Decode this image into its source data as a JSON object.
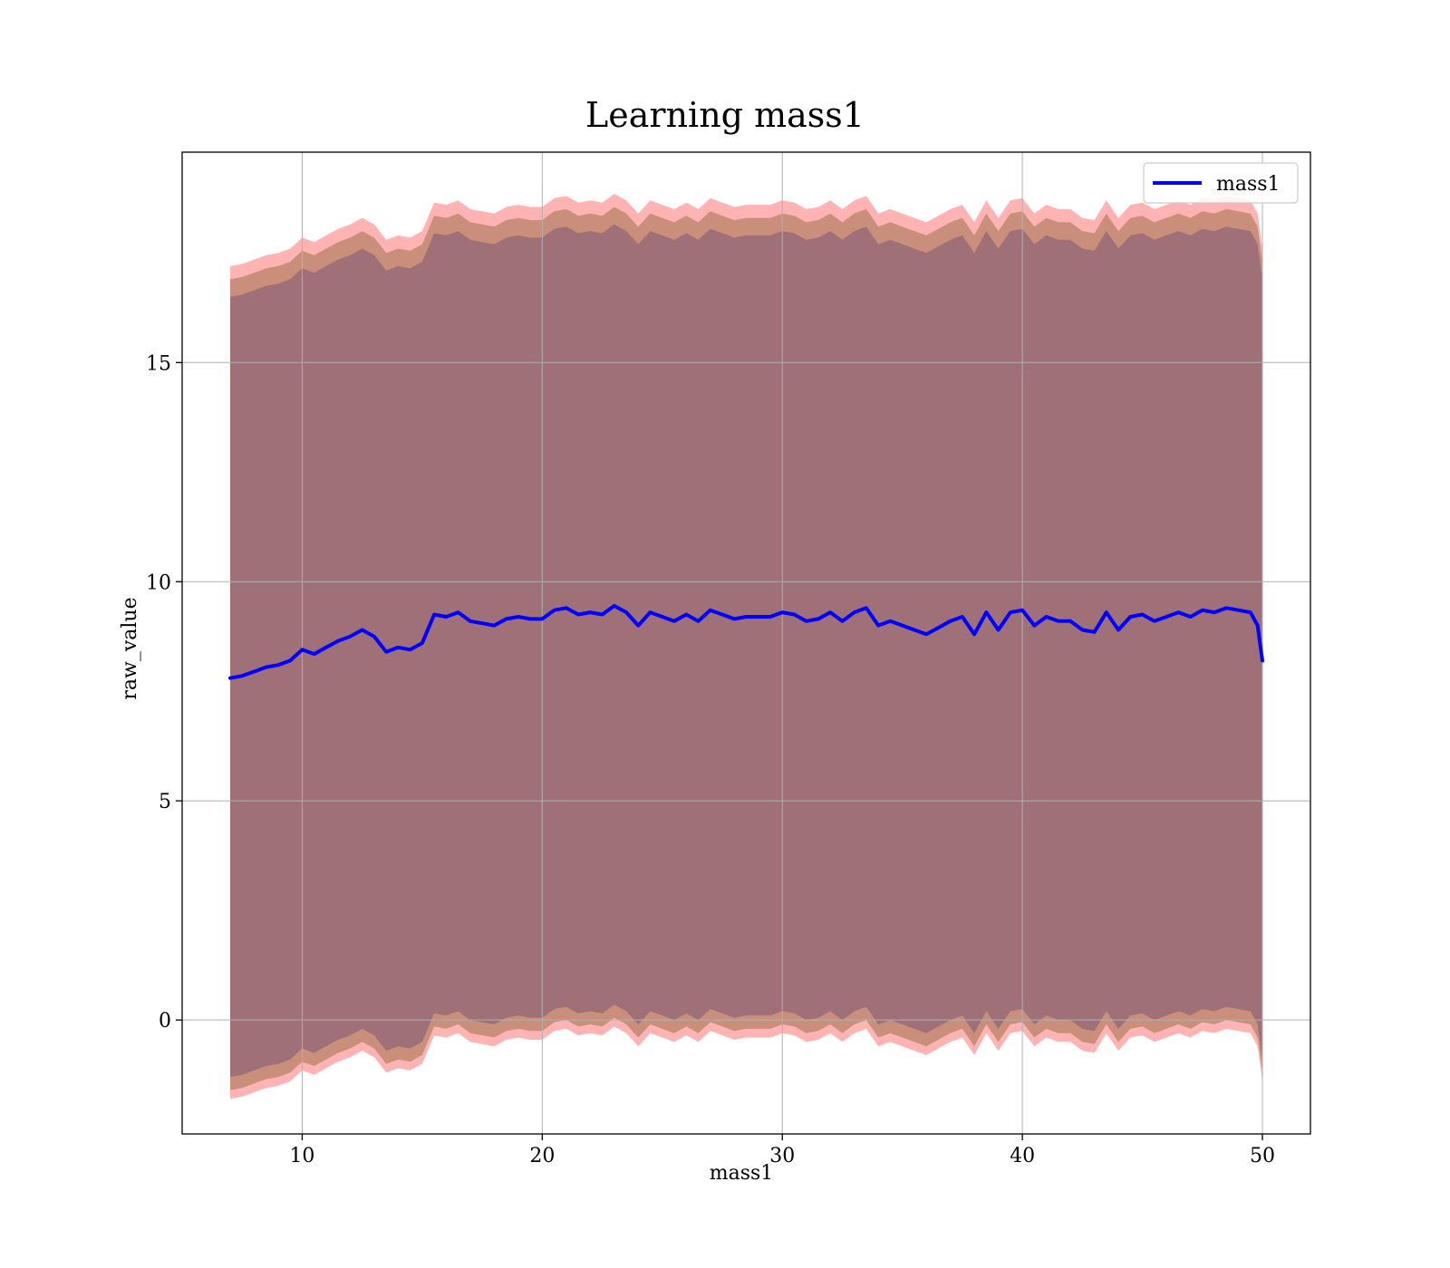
{
  "chart_data": {
    "type": "line",
    "title": "Learning mass1",
    "xlabel": "mass1",
    "ylabel": "raw_value",
    "xlim": [
      5,
      52
    ],
    "ylim": [
      -2.6,
      19.8
    ],
    "xticks": [
      10,
      20,
      30,
      40,
      50
    ],
    "yticks": [
      0,
      5,
      10,
      15
    ],
    "grid": true,
    "legend": {
      "placement": "top-right",
      "entries": [
        "mass1"
      ]
    },
    "colors": {
      "line": "#0000ff",
      "band_outer": "#ffb3b3",
      "band_middle": "#c98f7a",
      "band_inner": "#a07078"
    },
    "series": [
      {
        "name": "mass1",
        "x": [
          7.0,
          7.5,
          8.0,
          8.5,
          9.0,
          9.5,
          10.0,
          10.5,
          11.0,
          11.5,
          12.0,
          12.5,
          13.0,
          13.5,
          14.0,
          14.5,
          15.0,
          15.5,
          16.0,
          16.5,
          17.0,
          17.5,
          18.0,
          18.5,
          19.0,
          19.5,
          20.0,
          20.5,
          21.0,
          21.5,
          22.0,
          22.5,
          23.0,
          23.5,
          24.0,
          24.5,
          25.0,
          25.5,
          26.0,
          26.5,
          27.0,
          27.5,
          28.0,
          28.5,
          29.0,
          29.5,
          30.0,
          30.5,
          31.0,
          31.5,
          32.0,
          32.5,
          33.0,
          33.5,
          34.0,
          34.5,
          35.0,
          35.5,
          36.0,
          36.5,
          37.0,
          37.5,
          38.0,
          38.5,
          39.0,
          39.5,
          40.0,
          40.5,
          41.0,
          41.5,
          42.0,
          42.5,
          43.0,
          43.5,
          44.0,
          44.5,
          45.0,
          45.5,
          46.0,
          46.5,
          47.0,
          47.5,
          48.0,
          48.5,
          49.0,
          49.5,
          49.8,
          50.0
        ],
        "y": [
          7.8,
          7.85,
          7.95,
          8.05,
          8.1,
          8.2,
          8.45,
          8.35,
          8.5,
          8.65,
          8.75,
          8.9,
          8.75,
          8.4,
          8.5,
          8.45,
          8.6,
          9.25,
          9.2,
          9.3,
          9.1,
          9.05,
          9.0,
          9.15,
          9.2,
          9.15,
          9.15,
          9.35,
          9.4,
          9.25,
          9.3,
          9.25,
          9.45,
          9.3,
          9.0,
          9.3,
          9.2,
          9.1,
          9.25,
          9.1,
          9.35,
          9.25,
          9.15,
          9.2,
          9.2,
          9.2,
          9.3,
          9.25,
          9.1,
          9.15,
          9.3,
          9.1,
          9.3,
          9.4,
          9.0,
          9.1,
          9.0,
          8.9,
          8.8,
          8.95,
          9.1,
          9.2,
          8.8,
          9.3,
          8.9,
          9.3,
          9.35,
          9.0,
          9.2,
          9.1,
          9.1,
          8.9,
          8.85,
          9.3,
          8.9,
          9.2,
          9.25,
          9.1,
          9.2,
          9.3,
          9.2,
          9.35,
          9.3,
          9.4,
          9.35,
          9.3,
          9.0,
          8.2
        ],
        "band_inner": {
          "lower_offset": -9.1,
          "upper_offset": 8.7
        },
        "band_middle": {
          "lower_offset": -9.4,
          "upper_offset": 9.1
        },
        "band_outer": {
          "lower_offset": -9.6,
          "upper_offset": 9.4
        }
      }
    ]
  }
}
